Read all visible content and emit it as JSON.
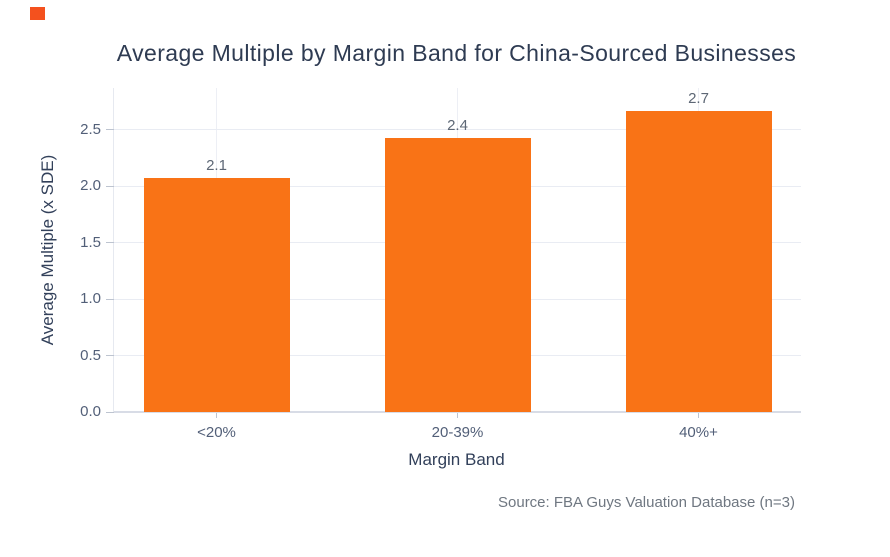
{
  "page": {
    "corner_marker_color": "#f4511e"
  },
  "chart_data": {
    "type": "bar",
    "title": "Average Multiple by Margin Band for China-Sourced Businesses",
    "categories": [
      "<20%",
      "20-39%",
      "40%+"
    ],
    "values": [
      2.07,
      2.43,
      2.67
    ],
    "bar_labels": [
      "2.1",
      "2.4",
      "2.7"
    ],
    "xlabel": "Margin Band",
    "ylabel": "Average Multiple (x SDE)",
    "ylim": [
      0,
      2.87
    ],
    "yticks": [
      0,
      0.5,
      1,
      1.5,
      2,
      2.5
    ],
    "ytick_labels": [
      "0.0",
      "0.5",
      "1.0",
      "1.5",
      "2.0",
      "2.5"
    ],
    "grid": true,
    "legend": false,
    "bar_color": "#f97316",
    "source_note": "Source: FBA Guys Valuation Database (n=3)"
  }
}
